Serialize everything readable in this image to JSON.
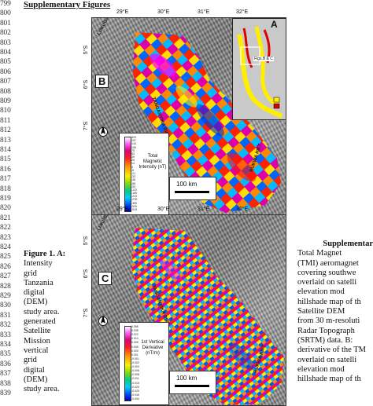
{
  "line_numbers": [
    "799",
    "800",
    "801",
    "802",
    "803",
    "804",
    "805",
    "806",
    "807",
    "808",
    "809",
    "810",
    "811",
    "812",
    "813",
    "814",
    "815",
    "816",
    "817",
    "818",
    "819",
    "820",
    "821",
    "822",
    "823",
    "824",
    "825",
    "826",
    "827",
    "828",
    "829",
    "830",
    "831",
    "832",
    "833",
    "834",
    "835",
    "836",
    "837",
    "838",
    "839"
  ],
  "heading": "Supplementary Figures",
  "panel_top": {
    "longitudes": [
      "29°E",
      "30°E",
      "31°E",
      "32°E"
    ],
    "latitudes": [
      "5°S",
      "6°S",
      "7°S"
    ],
    "letter": "B",
    "inset_letter": "A",
    "inset_box_label": "Figs.B & C",
    "rift_labels": [
      "LUKUGA RIFT",
      "RUKWA RIFT",
      "TANGANYIKA RIFT"
    ],
    "legend_title": "Total Magnetic Intensity (nT)",
    "legend_values": [
      "323",
      "197",
      "144",
      "106",
      "75",
      "53",
      "39",
      "26",
      "14",
      "4",
      "-8",
      "-21",
      "-33",
      "-48",
      "-68",
      "-93",
      "-122",
      "-165",
      "-223",
      "-278",
      "-355",
      "-525",
      "-919"
    ],
    "scale_label": "100 km"
  },
  "panel_bottom": {
    "longitudes": [
      "29°E",
      "30°E",
      "31°E",
      "32°E"
    ],
    "latitudes": [
      "5°S",
      "6°S",
      "7°S"
    ],
    "letter": "C",
    "rift_labels": [
      "LUKUGA RIFT",
      "RUKWA RIFT",
      "TANGANYIKA RIFT"
    ],
    "legend_title": "1st Vertical Derivative (nT/m)",
    "legend_values": [
      "0.086",
      "0.035",
      "0.022",
      "0.014",
      "0.009",
      "0.005",
      "0.003",
      "0.001",
      "-0.001",
      "-0.002",
      "-0.004",
      "-0.006",
      "-0.008",
      "-0.011",
      "-0.015",
      "-0.020",
      "-0.029",
      "-0.046",
      "-0.094"
    ],
    "scale_label": "100 km"
  },
  "caption_left": [
    "Figure 1. A:",
    "Intensity",
    "grid",
    "Tanzania",
    "digital",
    "(DEM)",
    "study area.",
    "generated",
    "Satellite",
    "Mission",
    "vertical",
    "grid",
    "digital",
    "(DEM)",
    "study area."
  ],
  "caption_right_title": "Supplementar",
  "caption_right_lines": [
    "Total Magnet",
    "(TMI) aeromagnet",
    "covering southwe",
    "overlaid on satelli",
    "elevation mod",
    "hillshade map of th",
    "Satellite DEM",
    "from 30 m-resoluti",
    "Radar Topograph",
    "(SRTM) data. B:",
    "derivative of the TM",
    "overlaid on satelli",
    "elevation mod",
    "hillshade map of th"
  ]
}
